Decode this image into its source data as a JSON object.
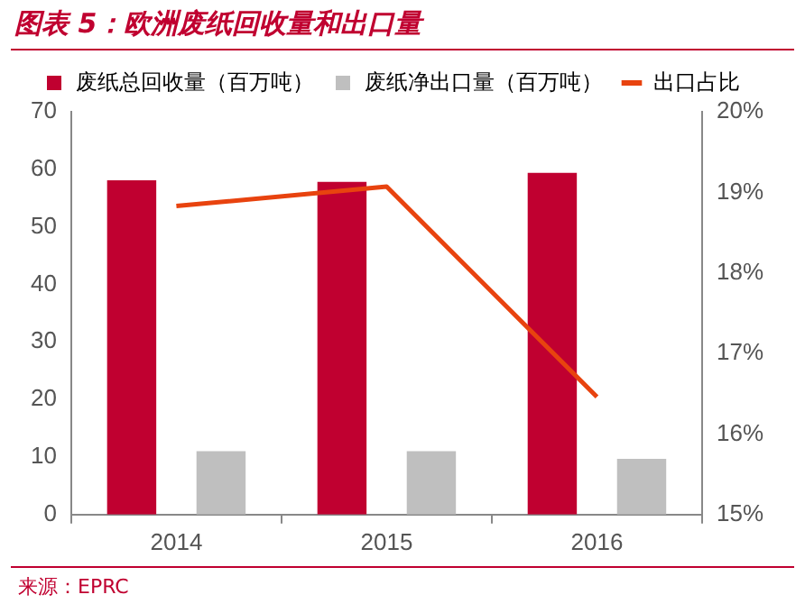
{
  "chart_data": {
    "type": "bar",
    "title": "图表 5：欧洲废纸回收量和出口量",
    "categories": [
      "2014",
      "2015",
      "2016"
    ],
    "series": [
      {
        "name": "废纸总回收量（百万吨）",
        "color": "#c00030",
        "values": [
          58.1,
          57.8,
          59.4
        ]
      },
      {
        "name": "废纸净出口量（百万吨）",
        "color": "#bfbfbf",
        "values": [
          11.0,
          11.0,
          9.7
        ]
      },
      {
        "name": "出口占比",
        "type": "line",
        "axis": "y2",
        "color": "#e8430f",
        "values": [
          18.83,
          19.07,
          16.46
        ]
      }
    ],
    "ylim": [
      0,
      70
    ],
    "yticks": [
      0,
      10,
      20,
      30,
      40,
      50,
      60,
      70
    ],
    "y2lim": [
      15,
      20
    ],
    "y2ticks": [
      {
        "value": 15,
        "label": "15%"
      },
      {
        "value": 16,
        "label": "16%"
      },
      {
        "value": 17,
        "label": "17%"
      },
      {
        "value": 18,
        "label": "18%"
      },
      {
        "value": 19,
        "label": "19%"
      },
      {
        "value": 20,
        "label": "20%"
      }
    ],
    "grid": false,
    "legend": "top",
    "marker": "none",
    "annotations": [
      "来源：EPRC"
    ]
  }
}
